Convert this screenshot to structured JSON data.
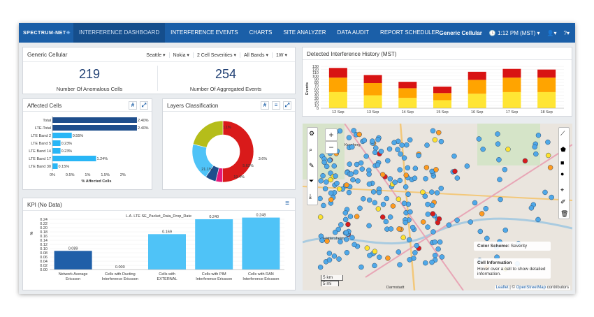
{
  "brand": "SPECTRUM-NET",
  "nav": [
    "INTERFERENCE DASHBOARD",
    "INTERFERENCE EVENTS",
    "CHARTS",
    "SITE ANALYZER",
    "DATA AUDIT",
    "REPORT SCHEDULER"
  ],
  "user": {
    "name": "Generic Cellular",
    "time": "1:12 PM (MST)"
  },
  "summary": {
    "title": "Generic Cellular",
    "filters": [
      "Seattle",
      "Nokia",
      "2 Cell Severities",
      "All Bands",
      "1W"
    ],
    "stat1": {
      "value": "219",
      "label": "Number Of Anomalous Cells"
    },
    "stat2": {
      "value": "254",
      "label": "Number Of Aggregated Events"
    }
  },
  "affected": {
    "title": "Affected Cells",
    "xlabel": "% Affected Cells",
    "ticks": [
      "0%",
      "0.5%",
      "1%",
      "1.5%",
      "2%"
    ],
    "chart_data": {
      "type": "bar",
      "categories": [
        "Total",
        "LTE-Total",
        "LTE Band 2",
        "LTE Band 5",
        "LTE Band 14",
        "LTE Band 17",
        "LTE Band 30"
      ],
      "values": [
        2.4,
        2.4,
        0.55,
        0.23,
        0.23,
        1.24,
        0.15
      ],
      "labels": [
        "2.40%",
        "2.40%",
        "0.55%",
        "0.23%",
        "0.23%",
        "1.24%",
        "0.15%"
      ]
    }
  },
  "layers": {
    "title": "Layers Classification",
    "chart_data": {
      "type": "pie",
      "values": [
        50.1,
        3.6,
        5.63,
        19.4,
        21.1
      ],
      "labels": [
        "50.1%",
        "3.6%",
        "5.63%",
        "19.4%",
        "21.1%"
      ],
      "colors": [
        "#d91a1a",
        "#e6197a",
        "#1f4e8c",
        "#4fc3f7",
        "#b5bd1a"
      ]
    }
  },
  "history": {
    "title": "Detected Interference History (MST)",
    "ylabel": "Events",
    "chart_data": {
      "type": "bar",
      "categories": [
        "12 Sep",
        "13 Sep",
        "14 Sep",
        "15 Sep",
        "16 Sep",
        "17 Sep",
        "18 Sep"
      ],
      "yticks": [
        "0",
        "10",
        "20",
        "30",
        "40",
        "50",
        "60",
        "70",
        "80",
        "90",
        "100",
        "110",
        "120",
        "130"
      ],
      "series": [
        {
          "color": "#ffe534",
          "values": [
            50,
            40,
            32,
            25,
            45,
            50,
            50
          ]
        },
        {
          "color": "#ffa400",
          "values": [
            45,
            38,
            30,
            22,
            43,
            45,
            45
          ]
        },
        {
          "color": "#d81313",
          "values": [
            30,
            25,
            20,
            20,
            25,
            27,
            25
          ]
        }
      ]
    }
  },
  "kpi": {
    "title": "KPI (No Data)",
    "chart_title": "L.A. LTE SE_Packet_Data_Drop_Rate",
    "ylabel": "%",
    "yticks": [
      "0.00",
      "0.02",
      "0.04",
      "0.06",
      "0.08",
      "0.10",
      "0.12",
      "0.14",
      "0.16",
      "0.18",
      "0.20",
      "0.22",
      "0.24"
    ],
    "chart_data": {
      "type": "bar",
      "categories": [
        [
          "Network Average",
          "Ericsson"
        ],
        [
          "Cells with Ducting",
          "Interference Ericsson"
        ],
        [
          "Cells with",
          "EXTERNAL"
        ],
        [
          "Cells with PIM",
          "Interference Ericsson"
        ],
        [
          "Cells with RAN",
          "Interference Ericsson"
        ]
      ],
      "values": [
        0.089,
        0.0,
        0.169,
        0.24,
        0.248
      ],
      "labels": [
        "0.089",
        "0.000",
        "0.169",
        "0.240",
        "0.248"
      ],
      "colors": [
        "#1f5fa8",
        "#4fc3f7",
        "#4fc3f7",
        "#4fc3f7",
        "#4fc3f7"
      ]
    }
  },
  "map": {
    "places": [
      "Kronberg",
      "Hattersheim",
      "Darmstadt"
    ],
    "scale": [
      "5 km",
      "5 mi"
    ],
    "legend_title": "Color Scheme:",
    "legend_value": "Severity",
    "info_title": "Cell Information",
    "info_text": "Hover over a cell to show detailed information.",
    "attribution_link1": "Leaflet",
    "attribution_sep": " | © ",
    "attribution_link2": "OpenStreetMap",
    "attribution_tail": " contributors"
  }
}
